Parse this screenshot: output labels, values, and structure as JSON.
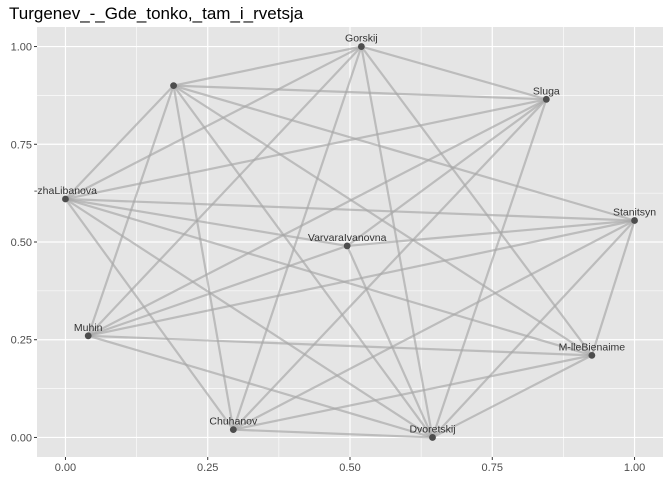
{
  "chart_data": {
    "type": "network",
    "title": "Turgenev_-_Gde_tonko,_tam_i_rvetsja",
    "xlim": [
      -0.05,
      1.05
    ],
    "ylim": [
      -0.05,
      1.05
    ],
    "x_ticks": [
      0.0,
      0.25,
      0.5,
      0.75,
      1.0
    ],
    "x_tick_labels": [
      "0.00",
      "0.25",
      "0.50",
      "0.75",
      "1.00"
    ],
    "y_ticks": [
      0.0,
      0.25,
      0.5,
      0.75,
      1.0
    ],
    "y_tick_labels": [
      "0.00",
      "0.25",
      "0.50",
      "0.75",
      "1.00"
    ],
    "grid": true,
    "colors": {
      "panel_background": "#e5e5e5",
      "grid": "#ffffff",
      "edge": "#a6a6a6",
      "node": "#4d4d4d"
    },
    "nodes": [
      {
        "label": "Gorskij",
        "x": 0.52,
        "y": 1.0
      },
      {
        "label": "",
        "x": 0.19,
        "y": 0.9
      },
      {
        "label": "Sluga",
        "x": 0.845,
        "y": 0.865
      },
      {
        "label": "-zhaLibanova",
        "x": 0.0,
        "y": 0.61
      },
      {
        "label": "Stanitsyn",
        "x": 1.0,
        "y": 0.555
      },
      {
        "label": "VarvaraIvanovna",
        "x": 0.495,
        "y": 0.49
      },
      {
        "label": "Muhin",
        "x": 0.04,
        "y": 0.26
      },
      {
        "label": "M-lleBienaime",
        "x": 0.925,
        "y": 0.21
      },
      {
        "label": "Chuhanov",
        "x": 0.295,
        "y": 0.02
      },
      {
        "label": "Dvoretskij",
        "x": 0.645,
        "y": 0.0
      }
    ],
    "edges": [
      [
        0,
        1
      ],
      [
        0,
        2
      ],
      [
        0,
        3
      ],
      [
        0,
        6
      ],
      [
        0,
        7
      ],
      [
        0,
        8
      ],
      [
        0,
        9
      ],
      [
        1,
        2
      ],
      [
        1,
        3
      ],
      [
        1,
        4
      ],
      [
        1,
        6
      ],
      [
        1,
        7
      ],
      [
        1,
        8
      ],
      [
        1,
        9
      ],
      [
        2,
        3
      ],
      [
        2,
        5
      ],
      [
        2,
        6
      ],
      [
        2,
        8
      ],
      [
        2,
        9
      ],
      [
        3,
        4
      ],
      [
        3,
        5
      ],
      [
        3,
        7
      ],
      [
        3,
        8
      ],
      [
        3,
        9
      ],
      [
        4,
        5
      ],
      [
        4,
        6
      ],
      [
        4,
        7
      ],
      [
        4,
        8
      ],
      [
        4,
        9
      ],
      [
        5,
        6
      ],
      [
        5,
        9
      ],
      [
        6,
        7
      ],
      [
        6,
        9
      ],
      [
        7,
        8
      ],
      [
        7,
        9
      ],
      [
        8,
        9
      ]
    ]
  }
}
